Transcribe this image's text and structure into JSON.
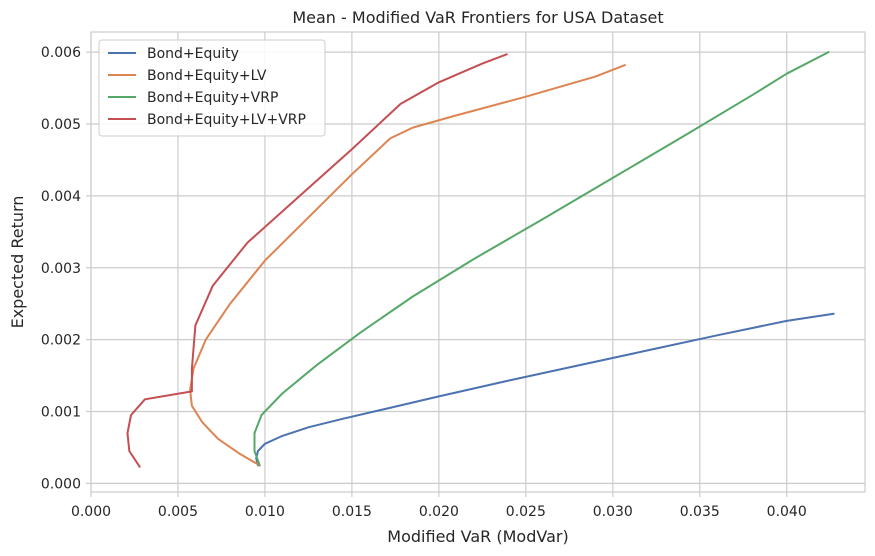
{
  "chart_data": {
    "type": "line",
    "title": "Mean - Modified VaR Frontiers for USA Dataset",
    "xlabel": "Modified VaR (ModVar)",
    "ylabel": "Expected Return",
    "xlim": [
      0.0,
      0.0445
    ],
    "ylim": [
      -0.00012,
      0.00628
    ],
    "xticks": [
      "0.000",
      "0.005",
      "0.010",
      "0.015",
      "0.020",
      "0.025",
      "0.030",
      "0.035",
      "0.040"
    ],
    "yticks": [
      "0.000",
      "0.001",
      "0.002",
      "0.003",
      "0.004",
      "0.005",
      "0.006"
    ],
    "grid": true,
    "legend_position": "upper-left",
    "series": [
      {
        "name": "Bond+Equity",
        "color": "#4c72b0",
        "x": [
          0.0096,
          0.0095,
          0.0096,
          0.01,
          0.011,
          0.0125,
          0.0145,
          0.017,
          0.02,
          0.024,
          0.028,
          0.032,
          0.036,
          0.04,
          0.0427
        ],
        "y": [
          0.00025,
          0.00035,
          0.00045,
          0.00055,
          0.00066,
          0.00078,
          0.0009,
          0.00104,
          0.00121,
          0.00143,
          0.00164,
          0.00185,
          0.00206,
          0.00226,
          0.00236
        ]
      },
      {
        "name": "Bond+Equity+LV",
        "color": "#dd8452",
        "x": [
          0.0097,
          0.0085,
          0.0073,
          0.0064,
          0.0058,
          0.0057,
          0.0059,
          0.0066,
          0.008,
          0.01,
          0.0125,
          0.015,
          0.0172,
          0.0185,
          0.021,
          0.025,
          0.029,
          0.0307
        ],
        "y": [
          0.00025,
          0.00042,
          0.00062,
          0.00085,
          0.00108,
          0.0013,
          0.0016,
          0.002,
          0.0025,
          0.0031,
          0.0037,
          0.0043,
          0.0048,
          0.00495,
          0.00512,
          0.00538,
          0.00566,
          0.00582
        ]
      },
      {
        "name": "Bond+Equity+VRP",
        "color": "#55a868",
        "x": [
          0.0097,
          0.0094,
          0.0094,
          0.0098,
          0.011,
          0.013,
          0.0155,
          0.0185,
          0.022,
          0.026,
          0.03,
          0.034,
          0.038,
          0.04,
          0.0424
        ],
        "y": [
          0.00025,
          0.00045,
          0.0007,
          0.00095,
          0.00125,
          0.00165,
          0.0021,
          0.0026,
          0.00312,
          0.00368,
          0.00425,
          0.00482,
          0.0054,
          0.0057,
          0.006
        ]
      },
      {
        "name": "Bond+Equity+LV+VRP",
        "color": "#c44e52",
        "x": [
          0.0028,
          0.0022,
          0.0021,
          0.0023,
          0.0031,
          0.0058,
          0.0058,
          0.006,
          0.007,
          0.009,
          0.012,
          0.015,
          0.0178,
          0.02,
          0.0225,
          0.0239
        ],
        "y": [
          0.00023,
          0.00045,
          0.0007,
          0.00095,
          0.00117,
          0.00128,
          0.0016,
          0.0022,
          0.00275,
          0.00335,
          0.004,
          0.00465,
          0.00528,
          0.00558,
          0.00584,
          0.00597
        ]
      }
    ]
  }
}
